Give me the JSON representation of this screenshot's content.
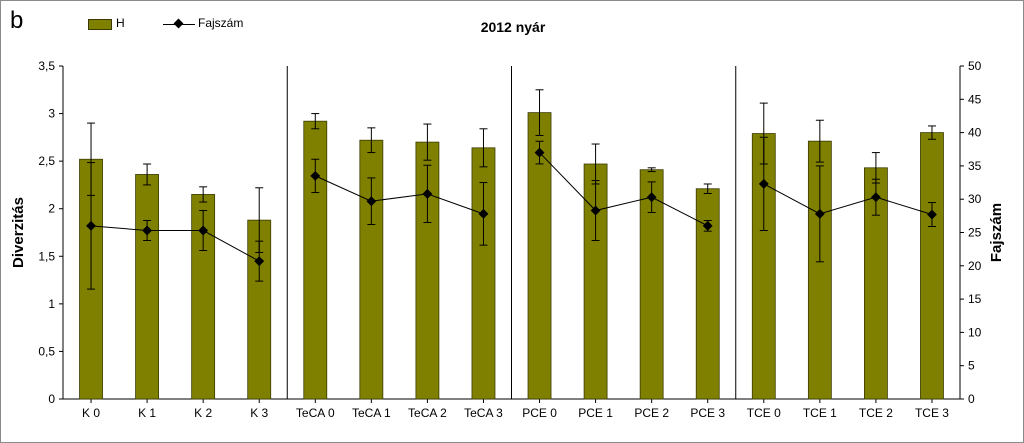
{
  "panel_letter": "b",
  "chart_data": {
    "type": "bar",
    "title": "2012 nyár",
    "categories": [
      "K 0",
      "K 1",
      "K 2",
      "K 3",
      "TeCA 0",
      "TeCA 1",
      "TeCA 2",
      "TeCA 3",
      "PCE 0",
      "PCE 1",
      "PCE 2",
      "PCE 3",
      "TCE 0",
      "TCE 1",
      "TCE 2",
      "TCE 3"
    ],
    "groups": [
      {
        "categories": [
          "K 0",
          "K 1",
          "K 2",
          "K 3"
        ]
      },
      {
        "categories": [
          "TeCA 0",
          "TeCA 1",
          "TeCA 2",
          "TeCA 3"
        ]
      },
      {
        "categories": [
          "PCE 0",
          "PCE 1",
          "PCE 2",
          "PCE 3"
        ]
      },
      {
        "categories": [
          "TCE 0",
          "TCE 1",
          "TCE 2",
          "TCE 3"
        ]
      }
    ],
    "series": [
      {
        "name": "H",
        "kind": "bar",
        "axis": "left",
        "color": "#808000",
        "values": [
          2.52,
          2.36,
          2.15,
          1.88,
          2.92,
          2.72,
          2.7,
          2.64,
          3.01,
          2.47,
          2.41,
          2.21,
          2.79,
          2.71,
          2.43,
          2.8
        ],
        "error": [
          0.38,
          0.11,
          0.08,
          0.34,
          0.08,
          0.13,
          0.19,
          0.2,
          0.24,
          0.21,
          0.02,
          0.05,
          0.32,
          0.22,
          0.16,
          0.07
        ]
      },
      {
        "name": "Fajszám",
        "kind": "line",
        "axis": "right",
        "color": "#000000",
        "values": [
          26.0,
          25.3,
          25.3,
          20.7,
          33.5,
          29.7,
          30.8,
          27.8,
          37.0,
          28.3,
          30.3,
          26.0,
          32.3,
          27.8,
          30.3,
          27.7
        ],
        "error": [
          9.5,
          1.5,
          3.0,
          3.0,
          2.5,
          3.5,
          4.3,
          4.7,
          1.7,
          4.5,
          2.3,
          0.8,
          7.0,
          7.2,
          2.7,
          1.8
        ]
      }
    ],
    "ylabel": "Diverzitás",
    "y2label": "Fajszám",
    "ylim": [
      0,
      3.5
    ],
    "y2lim": [
      0,
      50
    ],
    "yticks": [
      "0",
      "0,5",
      "1",
      "1,5",
      "2",
      "2,5",
      "3",
      "3,5"
    ],
    "y2ticks": [
      "0",
      "5",
      "10",
      "15",
      "20",
      "25",
      "30",
      "35",
      "40",
      "45",
      "50"
    ],
    "grid": false,
    "legend_position": "top-left"
  }
}
